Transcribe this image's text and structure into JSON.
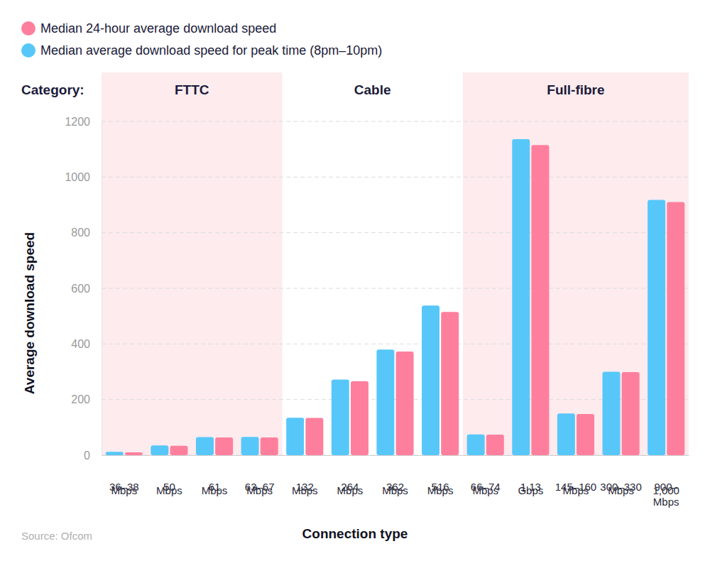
{
  "chart_data": {
    "type": "bar",
    "categories": [
      "36–38 Mbps",
      "50 Mbps",
      "61 Mbps",
      "63–67 Mbps",
      "132 Mbps",
      "264 Mbps",
      "362 Mbps",
      "516 Mbps",
      "66–74 Mbps",
      "1.13 Gbps",
      "145–160 Mbps",
      "300–330 Mbps",
      "900–1,000 Mbps"
    ],
    "series": [
      {
        "name": "Median 24-hour average download speed",
        "color": "#fe7f9d",
        "values": [
          10,
          34,
          64,
          64,
          134,
          266,
          373,
          515,
          74,
          1115,
          148,
          299,
          910
        ]
      },
      {
        "name": "Median average download speed for peak time (8pm–10pm)",
        "color": "#57c7fa",
        "values": [
          12,
          35,
          65,
          66,
          135,
          272,
          380,
          538,
          75,
          1136,
          150,
          300,
          918
        ]
      }
    ],
    "group_title": "Category:",
    "groups": [
      {
        "name": "FTTC",
        "categories": [
          "36–38 Mbps",
          "50 Mbps",
          "61 Mbps",
          "63–67 Mbps"
        ]
      },
      {
        "name": "Cable",
        "categories": [
          "132 Mbps",
          "264 Mbps",
          "362 Mbps",
          "516 Mbps"
        ]
      },
      {
        "name": "Full-fibre",
        "categories": [
          "66–74 Mbps",
          "1.13 Gbps",
          "145–160 Mbps",
          "300–330 Mbps",
          "900–1,000 Mbps"
        ]
      }
    ],
    "x_label": "Connection type",
    "y_label": "Average download speed",
    "source": "Source: Ofcom",
    "ylim": [
      0,
      1200
    ],
    "yticks": [
      0,
      200,
      400,
      600,
      800,
      1000,
      1200
    ],
    "grid": true,
    "legend": "top-left"
  }
}
